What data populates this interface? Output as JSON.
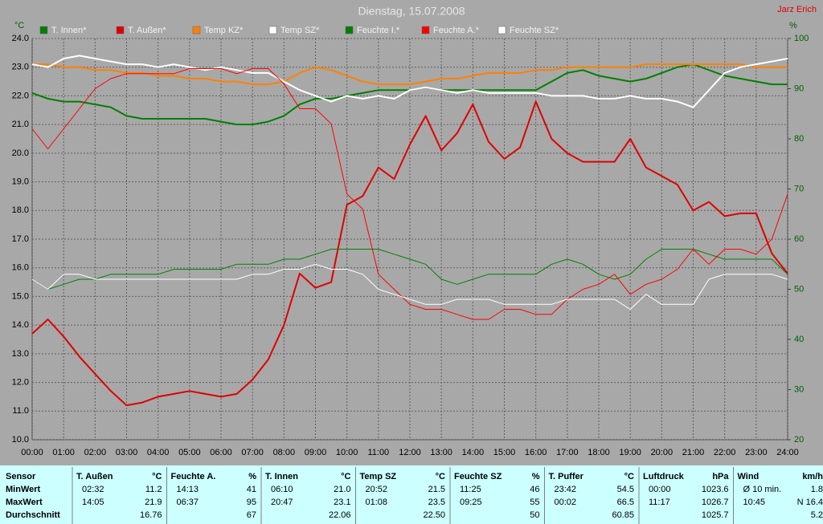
{
  "chart_data": {
    "type": "line",
    "title": "Dienstag, 15.07.2008",
    "author": "Jarz Erich",
    "ylabel": "°C",
    "y2label": "%",
    "xlim": [
      0,
      24
    ],
    "xticks": [
      {
        "value": 0,
        "label": "00:00"
      },
      {
        "value": 1,
        "label": "01:00"
      },
      {
        "value": 2,
        "label": "02:00"
      },
      {
        "value": 3,
        "label": "03:00"
      },
      {
        "value": 4,
        "label": "04:00"
      },
      {
        "value": 5,
        "label": "05:00"
      },
      {
        "value": 6,
        "label": "06:00"
      },
      {
        "value": 7,
        "label": "07:00"
      },
      {
        "value": 8,
        "label": "08:00"
      },
      {
        "value": 9,
        "label": "09:00"
      },
      {
        "value": 10,
        "label": "10:00"
      },
      {
        "value": 11,
        "label": "11:00"
      },
      {
        "value": 12,
        "label": "12:00"
      },
      {
        "value": 13,
        "label": "13:00"
      },
      {
        "value": 14,
        "label": "14:00"
      },
      {
        "value": 15,
        "label": "15:00"
      },
      {
        "value": 16,
        "label": "16:00"
      },
      {
        "value": 17,
        "label": "17:00"
      },
      {
        "value": 18,
        "label": "18:00"
      },
      {
        "value": 19,
        "label": "19:00"
      },
      {
        "value": 20,
        "label": "20:00"
      },
      {
        "value": 21,
        "label": "21:00"
      },
      {
        "value": 22,
        "label": "22:00"
      },
      {
        "value": 23,
        "label": "23:00"
      },
      {
        "value": 24,
        "label": "24:00"
      }
    ],
    "ylim": [
      10,
      24
    ],
    "yticks": [
      {
        "value": 10,
        "label": "10.0"
      },
      {
        "value": 11,
        "label": "11.0"
      },
      {
        "value": 12,
        "label": "12.0"
      },
      {
        "value": 13,
        "label": "13.0"
      },
      {
        "value": 14,
        "label": "14.0"
      },
      {
        "value": 15,
        "label": "15.0"
      },
      {
        "value": 16,
        "label": "16.0"
      },
      {
        "value": 17,
        "label": "17.0"
      },
      {
        "value": 18,
        "label": "18.0"
      },
      {
        "value": 19,
        "label": "19.0"
      },
      {
        "value": 20,
        "label": "20.0"
      },
      {
        "value": 21,
        "label": "21.0"
      },
      {
        "value": 22,
        "label": "22.0"
      },
      {
        "value": 23,
        "label": "23.0"
      },
      {
        "value": 24,
        "label": "24.0"
      }
    ],
    "y2lim": [
      20,
      100
    ],
    "y2ticks": [
      20,
      30,
      40,
      50,
      60,
      70,
      80,
      90,
      100
    ],
    "grid": true,
    "x": [
      0,
      0.5,
      1,
      1.5,
      2,
      2.5,
      3,
      3.5,
      4,
      4.5,
      5,
      5.5,
      6,
      6.5,
      7,
      7.5,
      8,
      8.5,
      9,
      9.5,
      10,
      10.5,
      11,
      11.5,
      12,
      12.5,
      13,
      13.5,
      14,
      14.5,
      15,
      15.5,
      16,
      16.5,
      17,
      17.5,
      18,
      18.5,
      19,
      19.5,
      20,
      20.5,
      21,
      21.5,
      22,
      22.5,
      23,
      23.5,
      24
    ],
    "series": [
      {
        "name": "T. Innen*",
        "color": "#008000",
        "values": [
          22.1,
          21.9,
          21.8,
          21.8,
          21.7,
          21.6,
          21.3,
          21.2,
          21.2,
          21.2,
          21.2,
          21.2,
          21.1,
          21.0,
          21.0,
          21.1,
          21.3,
          21.7,
          21.9,
          21.9,
          22.0,
          22.1,
          22.2,
          22.2,
          22.2,
          22.3,
          22.2,
          22.2,
          22.2,
          22.2,
          22.2,
          22.2,
          22.2,
          22.5,
          22.8,
          22.9,
          22.7,
          22.6,
          22.5,
          22.6,
          22.8,
          23.0,
          23.1,
          22.9,
          22.7,
          22.6,
          22.5,
          22.4,
          22.4
        ]
      },
      {
        "name": "T. Außen*",
        "color": "#e00000",
        "values": [
          13.7,
          14.2,
          13.6,
          12.9,
          12.3,
          11.7,
          11.2,
          11.3,
          11.5,
          11.6,
          11.7,
          11.6,
          11.5,
          11.6,
          12.1,
          12.8,
          14.0,
          15.8,
          15.3,
          15.5,
          18.2,
          18.5,
          19.5,
          19.1,
          20.3,
          21.3,
          20.1,
          20.7,
          21.7,
          20.4,
          19.8,
          20.2,
          21.8,
          20.5,
          20.0,
          19.7,
          19.7,
          19.7,
          20.5,
          19.5,
          19.2,
          18.9,
          18.0,
          18.3,
          17.8,
          17.9,
          17.9,
          16.5,
          15.8
        ]
      },
      {
        "name": "Temp KZ*",
        "color": "#ff8000",
        "values": [
          23.1,
          23.1,
          23.0,
          23.0,
          22.9,
          22.9,
          22.8,
          22.8,
          22.7,
          22.7,
          22.6,
          22.6,
          22.5,
          22.5,
          22.4,
          22.4,
          22.5,
          22.8,
          23.0,
          22.9,
          22.7,
          22.5,
          22.4,
          22.4,
          22.4,
          22.5,
          22.6,
          22.6,
          22.7,
          22.8,
          22.8,
          22.8,
          22.9,
          22.9,
          23.0,
          23.0,
          23.0,
          23.0,
          23.0,
          23.1,
          23.1,
          23.1,
          23.1,
          23.1,
          23.1,
          23.1,
          23.0,
          23.0,
          23.0
        ]
      },
      {
        "name": "Temp SZ*",
        "color": "#ffffff",
        "values": [
          23.1,
          23.0,
          23.3,
          23.4,
          23.3,
          23.2,
          23.1,
          23.1,
          23.0,
          23.1,
          23.0,
          22.9,
          23.0,
          22.9,
          22.8,
          22.8,
          22.5,
          22.2,
          22.0,
          21.8,
          22.0,
          21.9,
          22.0,
          21.9,
          22.2,
          22.3,
          22.2,
          22.1,
          22.2,
          22.1,
          22.1,
          22.1,
          22.1,
          22.0,
          22.0,
          22.0,
          21.9,
          21.9,
          22.0,
          21.9,
          21.9,
          21.8,
          21.6,
          22.2,
          22.8,
          23.0,
          23.1,
          23.2,
          23.3
        ]
      },
      {
        "name": "Feuchte I.*",
        "color": "#008000",
        "axis": "y2",
        "values": [
          52,
          50,
          51,
          52,
          52,
          53,
          53,
          53,
          53,
          54,
          54,
          54,
          54,
          55,
          55,
          55,
          56,
          56,
          57,
          58,
          58,
          58,
          58,
          57,
          56,
          55,
          52,
          51,
          52,
          53,
          53,
          53,
          53,
          55,
          56,
          55,
          53,
          52,
          53,
          56,
          58,
          58,
          58,
          57,
          56,
          56,
          56,
          56,
          53
        ]
      },
      {
        "name": "Feuchte A.*",
        "color": "#ff0000",
        "axis": "y2",
        "values": [
          82,
          78,
          82,
          86,
          90,
          92,
          93,
          93,
          93,
          93,
          94,
          94,
          94,
          93,
          94,
          94,
          91,
          86,
          86,
          83,
          69,
          66,
          53,
          50,
          47,
          46,
          46,
          45,
          44,
          44,
          46,
          46,
          45,
          45,
          48,
          50,
          51,
          53,
          49,
          51,
          52,
          54,
          58,
          55,
          58,
          58,
          57,
          60,
          69
        ]
      },
      {
        "name": "Feuchte SZ*",
        "color": "#ffffff",
        "axis": "y2",
        "values": [
          52,
          50,
          53,
          53,
          52,
          52,
          52,
          52,
          52,
          52,
          52,
          52,
          52,
          52,
          53,
          53,
          54,
          54,
          55,
          54,
          54,
          53,
          50,
          49,
          48,
          47,
          47,
          48,
          48,
          48,
          47,
          47,
          47,
          47,
          48,
          48,
          48,
          48,
          46,
          49,
          47,
          47,
          47,
          52,
          53,
          53,
          53,
          53,
          52
        ]
      }
    ]
  },
  "stats": {
    "sensor_label": "Sensor",
    "row_labels": [
      "MinWert",
      "MaxWert",
      "Durchschnitt"
    ],
    "columns": [
      {
        "name": "T. Außen",
        "unit": "°C",
        "rows": [
          [
            "02:32",
            "11.2"
          ],
          [
            "14:05",
            "21.9"
          ],
          [
            null,
            "16.76"
          ]
        ]
      },
      {
        "name": "Feuchte A.",
        "unit": "%",
        "rows": [
          [
            "14:13",
            "41"
          ],
          [
            "06:37",
            "95"
          ],
          [
            null,
            "67"
          ]
        ]
      },
      {
        "name": "T. Innen",
        "unit": "°C",
        "rows": [
          [
            "06:10",
            "21.0"
          ],
          [
            "20:47",
            "23.1"
          ],
          [
            null,
            "22.06"
          ]
        ]
      },
      {
        "name": "Temp SZ",
        "unit": "°C",
        "rows": [
          [
            "20:52",
            "21.5"
          ],
          [
            "01:08",
            "23.5"
          ],
          [
            null,
            "22.50"
          ]
        ]
      },
      {
        "name": "Feuchte SZ",
        "unit": "%",
        "rows": [
          [
            "11:25",
            "46"
          ],
          [
            "09:25",
            "55"
          ],
          [
            null,
            "50"
          ]
        ]
      },
      {
        "name": "T. Puffer",
        "unit": "°C",
        "rows": [
          [
            "23:42",
            "54.5"
          ],
          [
            "00:02",
            "66.5"
          ],
          [
            null,
            "60.85"
          ]
        ]
      },
      {
        "name": "Luftdruck",
        "unit": "hPa",
        "rows": [
          [
            "00:00",
            "1023.6"
          ],
          [
            "11:17",
            "1026.7"
          ],
          [
            null,
            "1025.7"
          ]
        ]
      },
      {
        "name": "Wind",
        "unit": "km/h",
        "rows": [
          [
            "Ø 10 min.",
            "1.8"
          ],
          [
            "10:45",
            "N 16.4"
          ],
          [
            null,
            "5.2"
          ]
        ]
      }
    ]
  }
}
